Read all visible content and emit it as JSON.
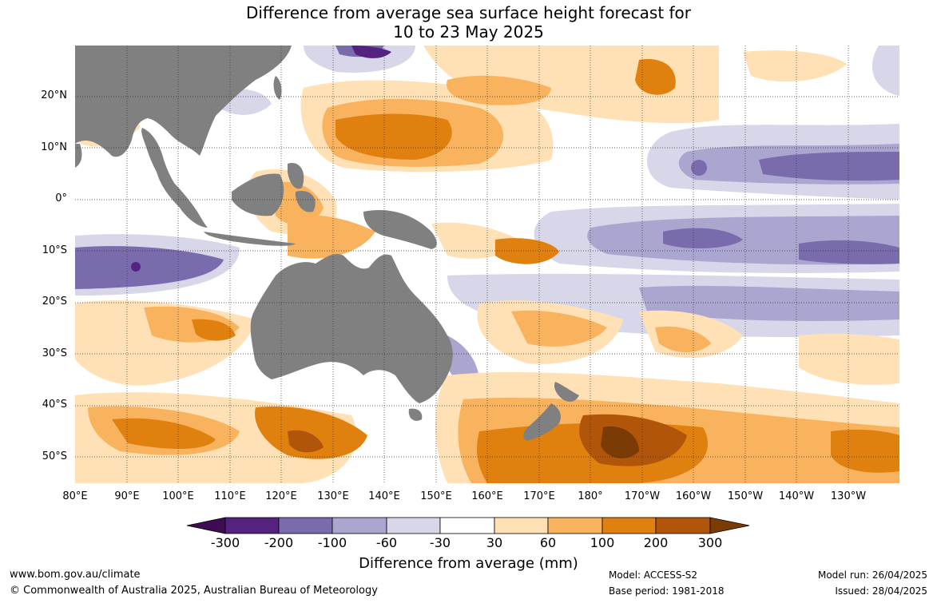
{
  "title_line1": "Difference from average sea surface height forecast for",
  "title_line2": "10 to 23 May 2025",
  "lat_labels": [
    "20°N",
    "10°N",
    "0°",
    "10°S",
    "20°S",
    "30°S",
    "40°S",
    "50°S"
  ],
  "lon_labels": [
    "80°E",
    "90°E",
    "100°E",
    "110°E",
    "120°E",
    "130°E",
    "140°E",
    "150°E",
    "160°E",
    "170°E",
    "180°",
    "170°W",
    "160°W",
    "150°W",
    "140°W",
    "130°W"
  ],
  "colorbar": {
    "title": "Difference from average (mm)",
    "ticks": [
      "-300",
      "-200",
      "-100",
      "-60",
      "-30",
      "30",
      "60",
      "100",
      "200",
      "300"
    ],
    "colors": [
      "#3d0c52",
      "#54237f",
      "#7a6bad",
      "#aba6d0",
      "#d8d7ea",
      "#ffffff",
      "#ffe1b5",
      "#f9b35f",
      "#e0800f",
      "#b05509",
      "#7a3b05"
    ]
  },
  "colors": {
    "land": "#808080",
    "ocean": "#ffffff",
    "grid": "#555555"
  },
  "footer": {
    "website": "www.bom.gov.au/climate",
    "copyright": "© Commonwealth of Australia 2025, Australian Bureau of Meteorology",
    "model": "Model: ACCESS-S2",
    "base_period": "Base period: 1981-2018",
    "model_run": "Model run: 26/04/2025",
    "issued": "Issued: 28/04/2025"
  }
}
